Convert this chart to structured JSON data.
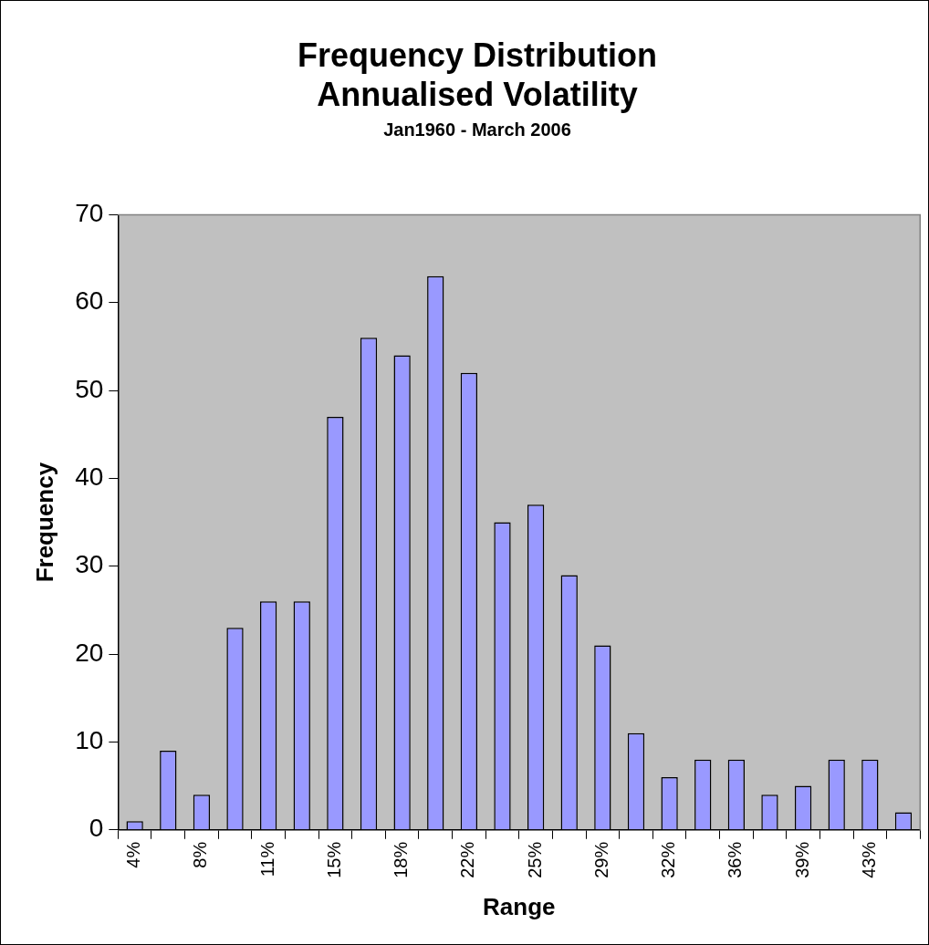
{
  "chart_data": {
    "type": "bar",
    "title": "Frequency Distribution\nAnnualised Volatility",
    "subtitle": "Jan1960 - March 2006",
    "xlabel": "Range",
    "ylabel": "Frequency",
    "categories": [
      "4%",
      null,
      "8%",
      null,
      "11%",
      null,
      "15%",
      null,
      "18%",
      null,
      "22%",
      null,
      "25%",
      null,
      "29%",
      null,
      "32%",
      null,
      "36%",
      null,
      "39%",
      null,
      "43%",
      null
    ],
    "values": [
      1,
      9,
      4,
      23,
      26,
      26,
      47,
      56,
      54,
      63,
      52,
      35,
      37,
      29,
      21,
      11,
      6,
      8,
      8,
      4,
      5,
      8,
      8,
      2
    ],
    "color": "#9999ff",
    "ylim": [
      0,
      70
    ],
    "yticks": [
      0,
      10,
      20,
      30,
      40,
      50,
      60,
      70
    ],
    "grid": false,
    "legend": false
  }
}
